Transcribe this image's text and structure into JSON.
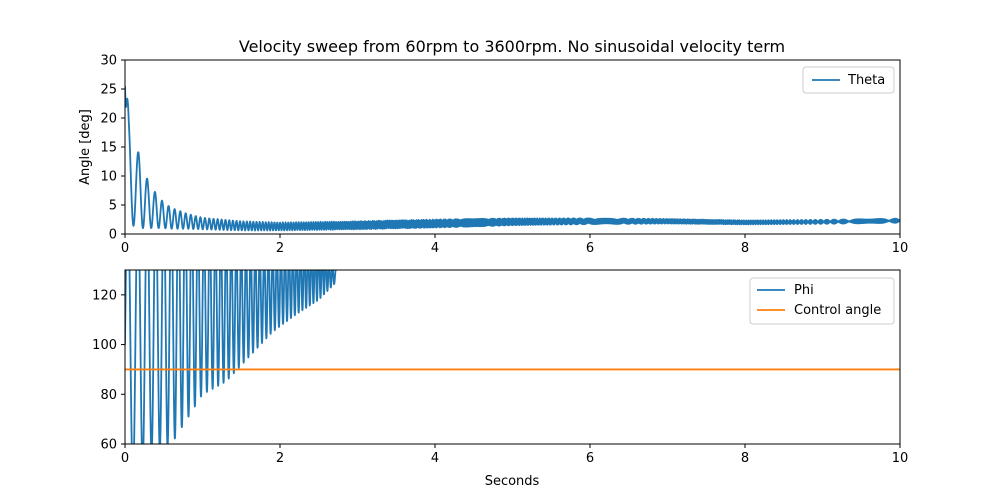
{
  "chart_data": [
    {
      "type": "line",
      "title": "Velocity sweep from 60rpm to 3600rpm. No sinusoidal velocity term",
      "xlabel": "",
      "ylabel": "Angle [deg]",
      "xlim": [
        0,
        10
      ],
      "ylim": [
        0,
        30
      ],
      "xticks": [
        "0",
        "2",
        "4",
        "6",
        "8",
        "10"
      ],
      "yticks": [
        "0",
        "5",
        "10",
        "15",
        "20",
        "25",
        "30"
      ],
      "legend_position": "top-right",
      "grid": false,
      "series": [
        {
          "name": "Theta",
          "color": "#1f77b4",
          "description_points": {
            "x": [
              0.0,
              0.02,
              0.05,
              0.1,
              0.15,
              0.2,
              0.3,
              0.4,
              0.5,
              0.6,
              0.8,
              1.0,
              1.5,
              2.0,
              3.0,
              4.0,
              5.0,
              6.0,
              7.0,
              8.0,
              9.0,
              10.0
            ],
            "center": [
              25.5,
              14,
              11,
              9.5,
              8,
              7,
              5,
              4,
              3.2,
              2.7,
              2.2,
              1.8,
              1.4,
              1.3,
              1.5,
              1.8,
              2.1,
              2.2,
              2.2,
              2.0,
              2.1,
              2.3
            ],
            "amplitude": [
              0,
              12,
              9,
              8,
              7,
              6,
              4,
              3,
              2.2,
              1.8,
              1.3,
              1.0,
              0.8,
              0.7,
              0.7,
              0.7,
              0.6,
              0.5,
              0.4,
              0.35,
              0.35,
              0.35
            ]
          }
        }
      ]
    },
    {
      "type": "line",
      "title": "",
      "xlabel": "Seconds",
      "ylabel": "",
      "xlim": [
        0,
        10
      ],
      "ylim": [
        60,
        130
      ],
      "xticks": [
        "0",
        "2",
        "4",
        "6",
        "8",
        "10"
      ],
      "yticks": [
        "60",
        "80",
        "100",
        "120"
      ],
      "legend_position": "top-right",
      "grid": false,
      "series": [
        {
          "name": "Phi",
          "color": "#1f77b4",
          "description_points": {
            "x": [
              0.0,
              0.3,
              0.6,
              0.8,
              1.0,
              1.3,
              1.6,
              1.9,
              2.2,
              2.5,
              2.72
            ],
            "low": [
              40,
              55,
              60,
              70,
              80,
              85,
              95,
              105,
              112,
              118,
              125
            ],
            "high": [
              160,
              160,
              160,
              160,
              150,
              145,
              140,
              140,
              140,
              140,
              130
            ]
          }
        },
        {
          "name": "Control angle",
          "color": "#ff7f0e",
          "x": [
            0,
            10
          ],
          "y": [
            90,
            90
          ]
        }
      ]
    }
  ]
}
